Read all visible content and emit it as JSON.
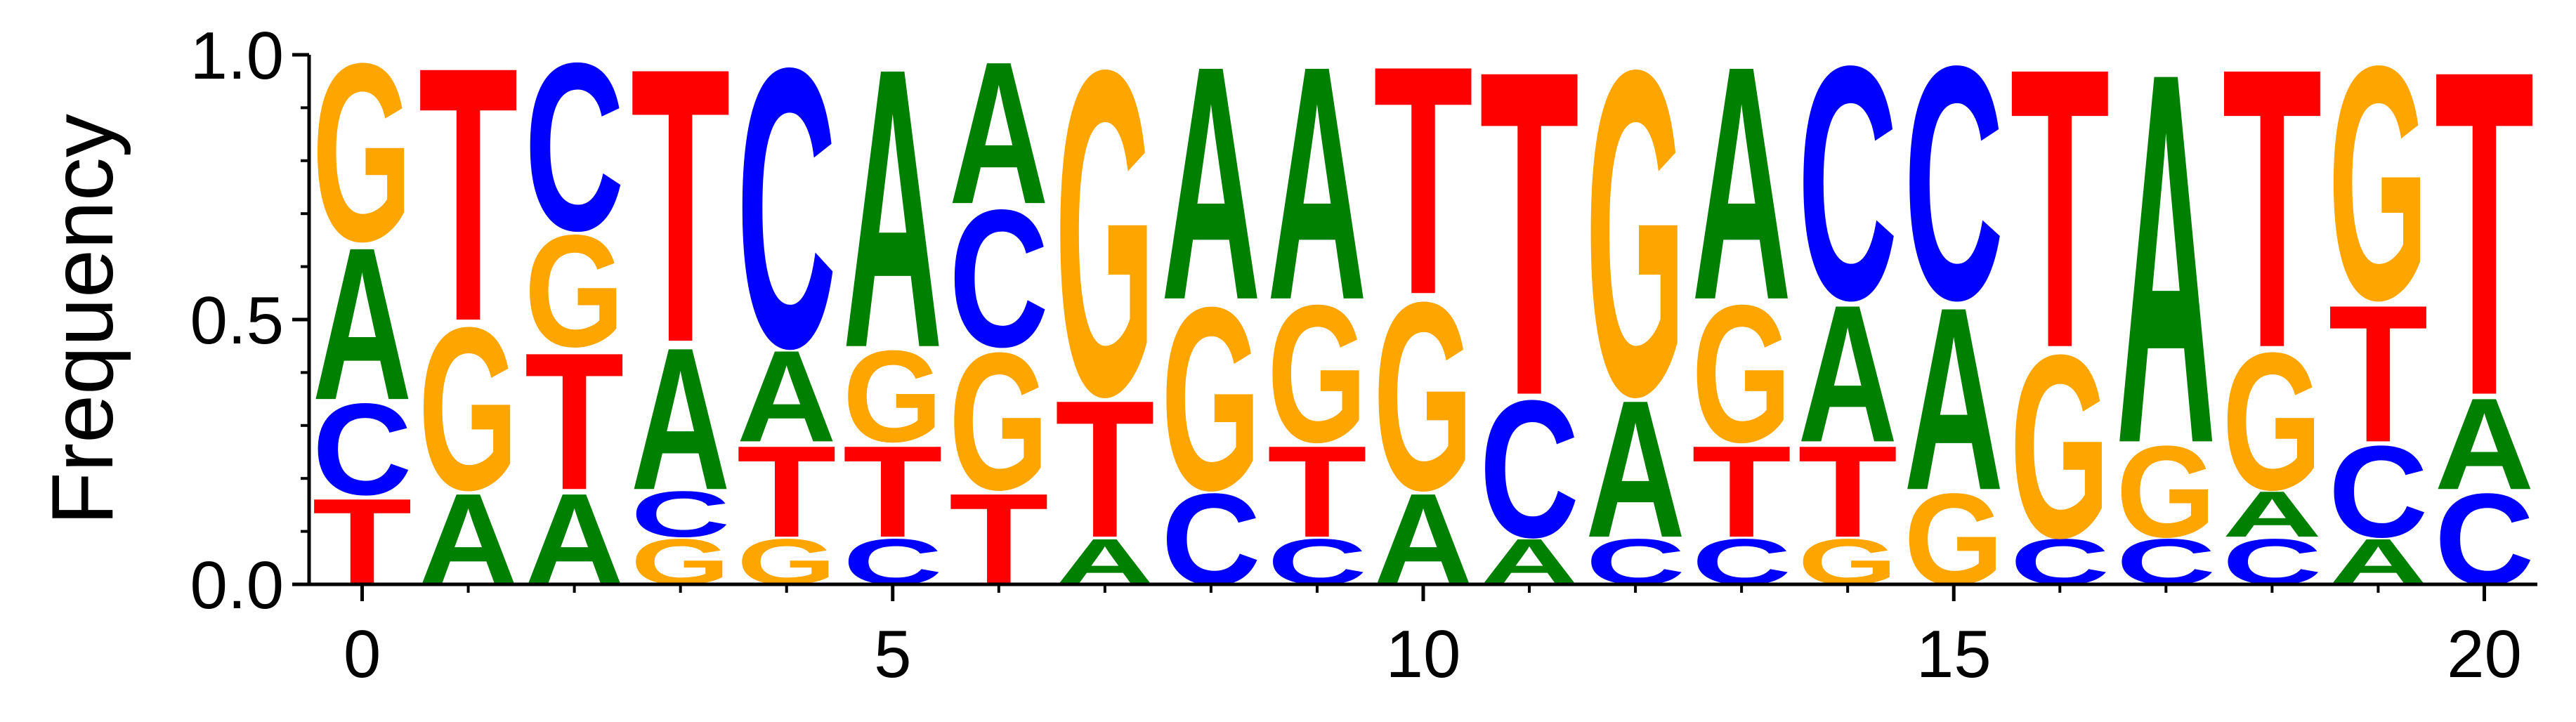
{
  "chart_data": {
    "type": "sequence-logo",
    "title": "",
    "xlabel": "",
    "ylabel": "Frequency",
    "ylim": [
      0,
      1
    ],
    "xlim": [
      -0.5,
      20.5
    ],
    "y_ticks": [
      "0.0",
      "0.5",
      "1.0"
    ],
    "y_tick_values": [
      0,
      0.5,
      1
    ],
    "x_ticks": [
      "0",
      "5",
      "10",
      "15",
      "20"
    ],
    "x_tick_values": [
      0,
      5,
      10,
      15,
      20
    ],
    "colors": {
      "A": "#008000",
      "C": "#0000ff",
      "G": "#ffa500",
      "T": "#ff0000"
    },
    "positions": [
      {
        "pos": 0,
        "stack": [
          [
            "T",
            0.17
          ],
          [
            "C",
            0.18
          ],
          [
            "A",
            0.3
          ],
          [
            "G",
            0.35
          ]
        ]
      },
      {
        "pos": 1,
        "stack": [
          [
            "A",
            0.18
          ],
          [
            "G",
            0.32
          ],
          [
            "T",
            0.5
          ]
        ]
      },
      {
        "pos": 2,
        "stack": [
          [
            "A",
            0.18
          ],
          [
            "T",
            0.27
          ],
          [
            "G",
            0.22
          ],
          [
            "C",
            0.33
          ]
        ]
      },
      {
        "pos": 3,
        "stack": [
          [
            "G",
            0.09
          ],
          [
            "C",
            0.09
          ],
          [
            "A",
            0.28
          ],
          [
            "T",
            0.54
          ]
        ]
      },
      {
        "pos": 4,
        "stack": [
          [
            "G",
            0.09
          ],
          [
            "T",
            0.18
          ],
          [
            "A",
            0.18
          ],
          [
            "C",
            0.55
          ]
        ]
      },
      {
        "pos": 5,
        "stack": [
          [
            "C",
            0.09
          ],
          [
            "T",
            0.18
          ],
          [
            "G",
            0.18
          ],
          [
            "A",
            0.55
          ]
        ]
      },
      {
        "pos": 6,
        "stack": [
          [
            "T",
            0.18
          ],
          [
            "G",
            0.27
          ],
          [
            "C",
            0.27
          ],
          [
            "A",
            0.28
          ]
        ]
      },
      {
        "pos": 7,
        "stack": [
          [
            "A",
            0.09
          ],
          [
            "T",
            0.27
          ],
          [
            "G",
            0.64
          ]
        ]
      },
      {
        "pos": 8,
        "stack": [
          [
            "C",
            0.18
          ],
          [
            "G",
            0.36
          ],
          [
            "A",
            0.46
          ]
        ]
      },
      {
        "pos": 9,
        "stack": [
          [
            "C",
            0.09
          ],
          [
            "T",
            0.18
          ],
          [
            "G",
            0.27
          ],
          [
            "A",
            0.46
          ]
        ]
      },
      {
        "pos": 10,
        "stack": [
          [
            "A",
            0.18
          ],
          [
            "G",
            0.37
          ],
          [
            "T",
            0.45
          ]
        ]
      },
      {
        "pos": 11,
        "stack": [
          [
            "A",
            0.09
          ],
          [
            "C",
            0.27
          ],
          [
            "T",
            0.64
          ]
        ]
      },
      {
        "pos": 12,
        "stack": [
          [
            "C",
            0.09
          ],
          [
            "A",
            0.27
          ],
          [
            "G",
            0.64
          ]
        ]
      },
      {
        "pos": 13,
        "stack": [
          [
            "C",
            0.09
          ],
          [
            "T",
            0.18
          ],
          [
            "G",
            0.27
          ],
          [
            "A",
            0.46
          ]
        ]
      },
      {
        "pos": 14,
        "stack": [
          [
            "G",
            0.09
          ],
          [
            "T",
            0.18
          ],
          [
            "A",
            0.27
          ],
          [
            "C",
            0.46
          ]
        ]
      },
      {
        "pos": 15,
        "stack": [
          [
            "G",
            0.18
          ],
          [
            "A",
            0.36
          ],
          [
            "C",
            0.46
          ]
        ]
      },
      {
        "pos": 16,
        "stack": [
          [
            "C",
            0.09
          ],
          [
            "G",
            0.36
          ],
          [
            "T",
            0.55
          ]
        ]
      },
      {
        "pos": 17,
        "stack": [
          [
            "C",
            0.09
          ],
          [
            "G",
            0.18
          ],
          [
            "A",
            0.73
          ]
        ]
      },
      {
        "pos": 18,
        "stack": [
          [
            "C",
            0.09
          ],
          [
            "A",
            0.09
          ],
          [
            "G",
            0.27
          ],
          [
            "T",
            0.55
          ]
        ]
      },
      {
        "pos": 19,
        "stack": [
          [
            "A",
            0.09
          ],
          [
            "C",
            0.18
          ],
          [
            "T",
            0.27
          ],
          [
            "G",
            0.46
          ]
        ]
      },
      {
        "pos": 20,
        "stack": [
          [
            "C",
            0.18
          ],
          [
            "A",
            0.18
          ],
          [
            "T",
            0.64
          ]
        ]
      }
    ]
  }
}
